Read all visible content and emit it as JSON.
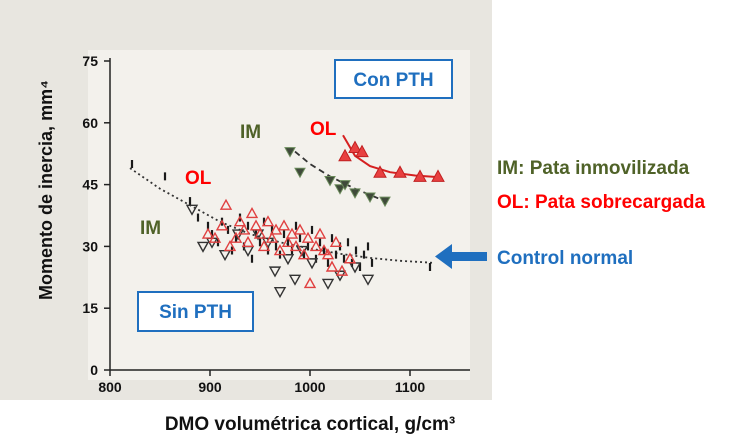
{
  "chart_data": {
    "type": "scatter",
    "xlabel": "DMO volumétrica cortical, g/cm³",
    "ylabel": "Momento de inercia, mm⁴",
    "xlim": [
      800,
      1150
    ],
    "ylim": [
      0,
      75
    ],
    "xticks": [
      800,
      900,
      1000,
      1100
    ],
    "yticks": [
      0,
      15,
      30,
      45,
      60,
      75
    ],
    "colors": {
      "im": "#4f6228",
      "ol": "#ff0000",
      "control": "#1f6fbf",
      "plot_bg": "#f3f1ec",
      "scan_bg": "#e7e5df"
    },
    "series": [
      {
        "key": "control_normal",
        "marker": "dash",
        "points": [
          [
            822,
            50
          ],
          [
            855,
            47
          ],
          [
            880,
            41
          ],
          [
            888,
            37
          ],
          [
            898,
            35
          ],
          [
            902,
            33
          ],
          [
            908,
            31
          ],
          [
            912,
            36
          ],
          [
            918,
            34
          ],
          [
            922,
            29
          ],
          [
            926,
            32
          ],
          [
            930,
            37
          ],
          [
            934,
            30
          ],
          [
            938,
            35
          ],
          [
            942,
            27
          ],
          [
            946,
            33
          ],
          [
            950,
            31
          ],
          [
            954,
            36
          ],
          [
            958,
            29
          ],
          [
            962,
            34
          ],
          [
            966,
            30
          ],
          [
            970,
            28
          ],
          [
            974,
            33
          ],
          [
            978,
            31
          ],
          [
            982,
            29
          ],
          [
            986,
            35
          ],
          [
            990,
            32
          ],
          [
            994,
            28
          ],
          [
            998,
            30
          ],
          [
            1002,
            34
          ],
          [
            1006,
            27
          ],
          [
            1010,
            31
          ],
          [
            1014,
            29
          ],
          [
            1018,
            26
          ],
          [
            1022,
            32
          ],
          [
            1026,
            28
          ],
          [
            1030,
            30
          ],
          [
            1034,
            27
          ],
          [
            1038,
            31
          ],
          [
            1042,
            26
          ],
          [
            1046,
            29
          ],
          [
            1050,
            25
          ],
          [
            1054,
            28
          ],
          [
            1058,
            30
          ],
          [
            1062,
            26
          ],
          [
            1120,
            25
          ]
        ]
      },
      {
        "key": "im_sin_pth",
        "marker": "triangle-down-open",
        "points": [
          [
            882,
            39
          ],
          [
            893,
            30
          ],
          [
            902,
            31
          ],
          [
            915,
            28
          ],
          [
            928,
            33
          ],
          [
            938,
            29
          ],
          [
            948,
            33
          ],
          [
            958,
            31
          ],
          [
            965,
            24
          ],
          [
            970,
            19
          ],
          [
            978,
            27
          ],
          [
            985,
            22
          ],
          [
            992,
            29
          ],
          [
            1002,
            26
          ],
          [
            1018,
            21
          ],
          [
            1030,
            23
          ],
          [
            1045,
            25
          ],
          [
            1058,
            22
          ]
        ]
      },
      {
        "key": "ol_sin_pth",
        "marker": "triangle-up-open",
        "points": [
          [
            898,
            33
          ],
          [
            905,
            32
          ],
          [
            912,
            35
          ],
          [
            916,
            40
          ],
          [
            920,
            30
          ],
          [
            926,
            32
          ],
          [
            930,
            36
          ],
          [
            934,
            34
          ],
          [
            938,
            31
          ],
          [
            942,
            38
          ],
          [
            946,
            35
          ],
          [
            950,
            33
          ],
          [
            954,
            30
          ],
          [
            958,
            36
          ],
          [
            962,
            32
          ],
          [
            966,
            34
          ],
          [
            970,
            29
          ],
          [
            974,
            35
          ],
          [
            978,
            31
          ],
          [
            982,
            33
          ],
          [
            986,
            30
          ],
          [
            990,
            34
          ],
          [
            994,
            28
          ],
          [
            998,
            32
          ],
          [
            1000,
            21
          ],
          [
            1006,
            30
          ],
          [
            1010,
            33
          ],
          [
            1014,
            29
          ],
          [
            1018,
            28
          ],
          [
            1022,
            25
          ],
          [
            1026,
            31
          ],
          [
            1032,
            24
          ],
          [
            1040,
            27
          ]
        ]
      },
      {
        "key": "im_con_pth",
        "marker": "triangle-down-filled",
        "points": [
          [
            980,
            53
          ],
          [
            990,
            48
          ],
          [
            1020,
            46
          ],
          [
            1030,
            44
          ],
          [
            1035,
            45
          ],
          [
            1045,
            43
          ],
          [
            1060,
            42
          ],
          [
            1075,
            41
          ]
        ]
      },
      {
        "key": "ol_con_pth",
        "marker": "triangle-up-filled",
        "points": [
          [
            1035,
            52
          ],
          [
            1045,
            54
          ],
          [
            1052,
            53
          ],
          [
            1070,
            48
          ],
          [
            1090,
            48
          ],
          [
            1110,
            47
          ],
          [
            1128,
            47
          ]
        ]
      }
    ],
    "trend_curves": [
      {
        "key": "control",
        "style": "dotted",
        "color": "#333333",
        "points": [
          [
            820,
            49
          ],
          [
            850,
            44
          ],
          [
            880,
            40
          ],
          [
            910,
            36
          ],
          [
            940,
            33
          ],
          [
            970,
            31
          ],
          [
            1000,
            29.5
          ],
          [
            1030,
            28.2
          ],
          [
            1060,
            27.2
          ],
          [
            1090,
            26.5
          ],
          [
            1125,
            26
          ]
        ]
      },
      {
        "key": "im_con_pth",
        "style": "dashed",
        "color": "#333333",
        "points": [
          [
            985,
            53
          ],
          [
            1000,
            50
          ],
          [
            1020,
            47
          ],
          [
            1045,
            44
          ],
          [
            1075,
            41
          ]
        ]
      },
      {
        "key": "ol_con_pth",
        "style": "solid",
        "color": "#d62020",
        "points": [
          [
            1033,
            57
          ],
          [
            1045,
            52
          ],
          [
            1060,
            49.5
          ],
          [
            1080,
            48
          ],
          [
            1105,
            47.2
          ],
          [
            1130,
            46.8
          ]
        ]
      }
    ],
    "annotations": {
      "con_pth": "Con PTH",
      "sin_pth": "Sin PTH",
      "im_upper": "IM",
      "ol_upper": "OL",
      "im_lower": "IM",
      "ol_lower": "OL",
      "legend_im": "IM: Pata inmovilizada",
      "legend_ol": "OL: Pata sobrecargada",
      "control_normal": "Control normal"
    }
  }
}
